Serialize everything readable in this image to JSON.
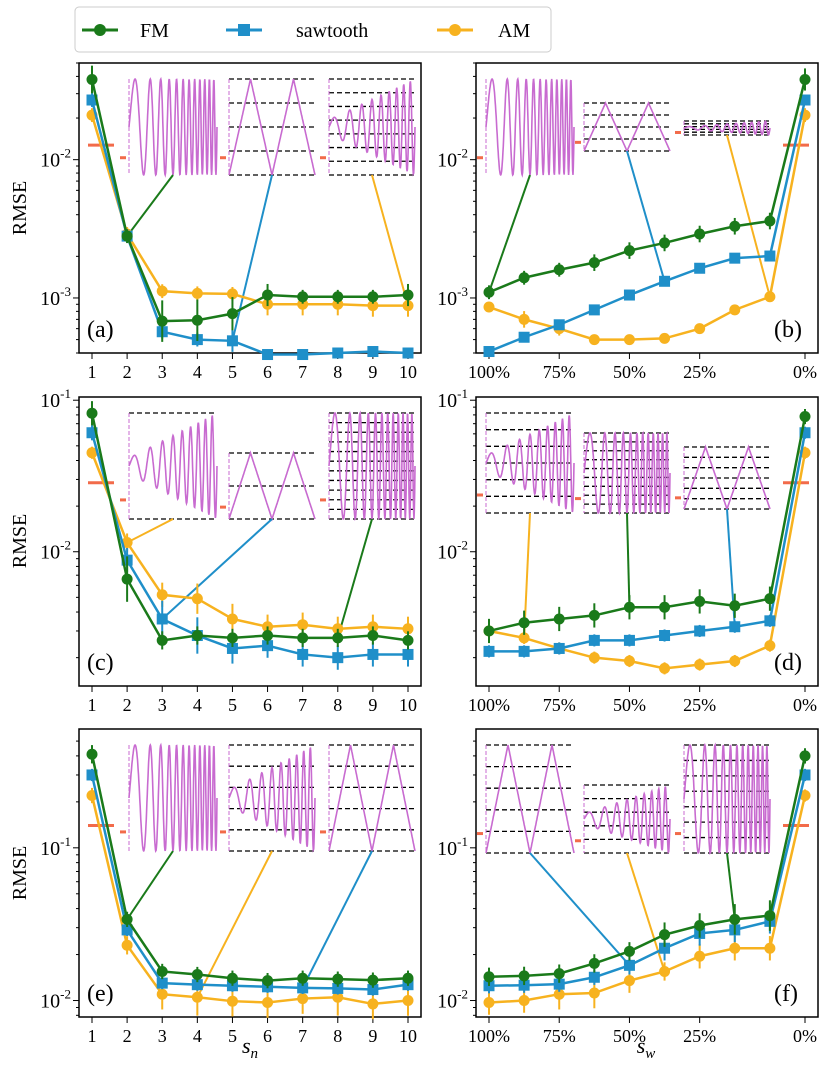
{
  "colors": {
    "FM": "#1a7a1a",
    "sawtooth": "#1f8fc9",
    "AM": "#f7b21f",
    "inset_signal": "#c86bd0",
    "inset_marker": "#f26b4a"
  },
  "legend": [
    {
      "label": "FM",
      "marker": "circle"
    },
    {
      "label": "sawtooth",
      "marker": "square"
    },
    {
      "label": "AM",
      "marker": "circle"
    }
  ],
  "shared": {
    "ylabel": "RMSE",
    "xlabel_left": "s_n",
    "xlabel_right": "s_w",
    "xlabel_left_base": "s",
    "xlabel_left_sub": "n",
    "xlabel_right_base": "s",
    "xlabel_right_sub": "w",
    "xticks_left": [
      "1",
      "2",
      "3",
      "4",
      "5",
      "6",
      "7",
      "8",
      "9",
      "10"
    ],
    "xticks_right": [
      "100%",
      "75%",
      "50%",
      "25%",
      "0%"
    ]
  },
  "chart_data": [
    {
      "panel": "(a)",
      "type": "line",
      "x_scale": "categorical",
      "y_scale": "log",
      "x": [
        "1",
        "2",
        "3",
        "4",
        "5",
        "6",
        "7",
        "8",
        "9",
        "10"
      ],
      "ylim": [
        0.0004,
        0.05
      ],
      "yticks": [
        {
          "value": 0.01,
          "label": "10",
          "exp": "-2"
        },
        {
          "value": 0.001,
          "label": "10",
          "exp": "-3"
        }
      ],
      "series": [
        {
          "name": "FM",
          "values": [
            0.038,
            0.0028,
            0.00068,
            0.00069,
            0.00077,
            0.00105,
            0.00102,
            0.00102,
            0.00102,
            0.00105
          ],
          "err": [
            0.1,
            0.05,
            0.15,
            0.15,
            0.12,
            0.08,
            0.05,
            0.05,
            0.05,
            0.08
          ]
        },
        {
          "name": "sawtooth",
          "values": [
            0.027,
            0.0028,
            0.00057,
            0.0005,
            0.00049,
            0.00039,
            0.00039,
            0.0004,
            0.00041,
            0.0004
          ],
          "err": [
            0.05,
            0.05,
            0.05,
            0.05,
            0.08,
            0.03,
            0.03,
            0.03,
            0.03,
            0.03
          ]
        },
        {
          "name": "AM",
          "values": [
            0.021,
            0.0029,
            0.00112,
            0.00108,
            0.00107,
            0.0009,
            0.0009,
            0.0009,
            0.00088,
            0.00088
          ],
          "err": [
            0.05,
            0.05,
            0.05,
            0.05,
            0.05,
            0.08,
            0.08,
            0.08,
            0.08,
            0.08
          ]
        }
      ]
    },
    {
      "panel": "(b)",
      "type": "line",
      "x_scale": "categorical",
      "y_scale": "log",
      "x": [
        "100%",
        "87.5%",
        "75%",
        "62.5%",
        "50%",
        "37.5%",
        "25%",
        "12.5%",
        "6.25%",
        "0%"
      ],
      "ylim": [
        0.0004,
        0.05
      ],
      "yticks": [
        {
          "value": 0.01,
          "label": "10",
          "exp": "-2"
        },
        {
          "value": 0.001,
          "label": "10",
          "exp": "-3"
        }
      ],
      "series": [
        {
          "name": "FM",
          "values": [
            0.0011,
            0.0014,
            0.0016,
            0.0018,
            0.0022,
            0.0025,
            0.0029,
            0.0033,
            0.0036,
            0.038
          ],
          "err": [
            0.05,
            0.05,
            0.05,
            0.06,
            0.06,
            0.06,
            0.06,
            0.06,
            0.06,
            0.08
          ]
        },
        {
          "name": "sawtooth",
          "values": [
            0.00041,
            0.00052,
            0.00064,
            0.00082,
            0.00105,
            0.00132,
            0.00164,
            0.00194,
            0.00201,
            0.027
          ],
          "err": [
            0.03,
            0.03,
            0.03,
            0.03,
            0.03,
            0.03,
            0.03,
            0.03,
            0.03,
            0.03
          ]
        },
        {
          "name": "AM",
          "values": [
            0.00086,
            0.0007,
            0.0006,
            0.0005,
            0.0005,
            0.00051,
            0.0006,
            0.00082,
            0.00102,
            0.021
          ],
          "err": [
            0.03,
            0.06,
            0.05,
            0.03,
            0.03,
            0.03,
            0.03,
            0.03,
            0.03,
            0.05
          ]
        }
      ]
    },
    {
      "panel": "(c)",
      "type": "line",
      "x_scale": "categorical",
      "y_scale": "log",
      "x": [
        "1",
        "2",
        "3",
        "4",
        "5",
        "6",
        "7",
        "8",
        "9",
        "10"
      ],
      "ylim": [
        0.0013,
        0.105
      ],
      "yticks": [
        {
          "value": 0.1,
          "label": "10",
          "exp": "-1"
        },
        {
          "value": 0.01,
          "label": "10",
          "exp": "-2"
        }
      ],
      "series": [
        {
          "name": "FM",
          "values": [
            0.082,
            0.0066,
            0.0026,
            0.0028,
            0.0027,
            0.0028,
            0.0027,
            0.0027,
            0.0028,
            0.0026
          ],
          "err": [
            0.08,
            0.15,
            0.06,
            0.06,
            0.06,
            0.06,
            0.06,
            0.06,
            0.06,
            0.06
          ]
        },
        {
          "name": "sawtooth",
          "values": [
            0.061,
            0.0088,
            0.0036,
            0.0028,
            0.0023,
            0.0024,
            0.0021,
            0.002,
            0.0021,
            0.0021
          ],
          "err": [
            0.05,
            0.08,
            0.12,
            0.12,
            0.1,
            0.08,
            0.08,
            0.08,
            0.08,
            0.08
          ]
        },
        {
          "name": "AM",
          "values": [
            0.045,
            0.0115,
            0.0052,
            0.0049,
            0.0036,
            0.0032,
            0.0033,
            0.0031,
            0.0032,
            0.0031
          ],
          "err": [
            0.04,
            0.06,
            0.08,
            0.1,
            0.1,
            0.08,
            0.08,
            0.08,
            0.08,
            0.08
          ]
        }
      ]
    },
    {
      "panel": "(d)",
      "type": "line",
      "x_scale": "categorical",
      "y_scale": "log",
      "x": [
        "100%",
        "87.5%",
        "75%",
        "62.5%",
        "50%",
        "37.5%",
        "25%",
        "12.5%",
        "6.25%",
        "0%"
      ],
      "ylim": [
        0.0013,
        0.105
      ],
      "yticks": [
        {
          "value": 0.1,
          "label": "10",
          "exp": "-1"
        },
        {
          "value": 0.01,
          "label": "10",
          "exp": "-2"
        }
      ],
      "series": [
        {
          "name": "FM",
          "values": [
            0.003,
            0.0034,
            0.0036,
            0.0038,
            0.0043,
            0.0043,
            0.0047,
            0.0044,
            0.0049,
            0.078
          ],
          "err": [
            0.08,
            0.08,
            0.08,
            0.08,
            0.08,
            0.08,
            0.08,
            0.08,
            0.08,
            0.05
          ]
        },
        {
          "name": "sawtooth",
          "values": [
            0.0022,
            0.0022,
            0.0023,
            0.0026,
            0.0026,
            0.0028,
            0.003,
            0.0032,
            0.0035,
            0.061
          ],
          "err": [
            0.04,
            0.04,
            0.04,
            0.04,
            0.04,
            0.04,
            0.04,
            0.04,
            0.04,
            0.04
          ]
        },
        {
          "name": "AM",
          "values": [
            0.003,
            0.0027,
            0.0023,
            0.002,
            0.0019,
            0.0017,
            0.0018,
            0.0019,
            0.0024,
            0.045
          ],
          "err": [
            0.04,
            0.04,
            0.04,
            0.04,
            0.04,
            0.04,
            0.04,
            0.04,
            0.04,
            0.04
          ]
        }
      ]
    },
    {
      "panel": "(e)",
      "type": "line",
      "x_scale": "categorical",
      "y_scale": "log",
      "x": [
        "1",
        "2",
        "3",
        "4",
        "5",
        "6",
        "7",
        "8",
        "9",
        "10"
      ],
      "ylim": [
        0.0078,
        0.6
      ],
      "yticks": [
        {
          "value": 0.1,
          "label": "10",
          "exp": "-1"
        },
        {
          "value": 0.01,
          "label": "10",
          "exp": "-2"
        }
      ],
      "series": [
        {
          "name": "FM",
          "values": [
            0.41,
            0.034,
            0.0155,
            0.0148,
            0.014,
            0.0135,
            0.014,
            0.0138,
            0.0136,
            0.014
          ],
          "err": [
            0.06,
            0.05,
            0.05,
            0.05,
            0.05,
            0.05,
            0.05,
            0.05,
            0.05,
            0.05
          ]
        },
        {
          "name": "sawtooth",
          "values": [
            0.3,
            0.029,
            0.013,
            0.0127,
            0.0125,
            0.0123,
            0.0121,
            0.012,
            0.0118,
            0.0127
          ],
          "err": [
            0.04,
            0.04,
            0.04,
            0.04,
            0.04,
            0.04,
            0.04,
            0.04,
            0.04,
            0.04
          ]
        },
        {
          "name": "AM",
          "values": [
            0.22,
            0.023,
            0.011,
            0.0105,
            0.0099,
            0.0097,
            0.0103,
            0.0105,
            0.0095,
            0.01
          ],
          "err": [
            0.05,
            0.06,
            0.1,
            0.12,
            0.1,
            0.1,
            0.1,
            0.12,
            0.1,
            0.1
          ]
        }
      ]
    },
    {
      "panel": "(f)",
      "type": "line",
      "x_scale": "categorical",
      "y_scale": "log",
      "x": [
        "100%",
        "87.5%",
        "75%",
        "62.5%",
        "50%",
        "37.5%",
        "25%",
        "12.5%",
        "6.25%",
        "0%"
      ],
      "ylim": [
        0.0078,
        0.6
      ],
      "yticks": [
        {
          "value": 0.1,
          "label": "10",
          "exp": "-1"
        },
        {
          "value": 0.01,
          "label": "10",
          "exp": "-2"
        }
      ],
      "series": [
        {
          "name": "FM",
          "values": [
            0.0143,
            0.0145,
            0.015,
            0.0175,
            0.021,
            0.027,
            0.031,
            0.034,
            0.036,
            0.4
          ],
          "err": [
            0.06,
            0.06,
            0.06,
            0.06,
            0.06,
            0.08,
            0.08,
            0.1,
            0.1,
            0.05
          ]
        },
        {
          "name": "sawtooth",
          "values": [
            0.0125,
            0.0126,
            0.0128,
            0.0142,
            0.017,
            0.022,
            0.0275,
            0.029,
            0.033,
            0.3
          ],
          "err": [
            0.05,
            0.05,
            0.05,
            0.05,
            0.06,
            0.08,
            0.08,
            0.08,
            0.08,
            0.04
          ]
        },
        {
          "name": "AM",
          "values": [
            0.0097,
            0.01,
            0.011,
            0.0112,
            0.0135,
            0.0155,
            0.0195,
            0.022,
            0.022,
            0.22
          ],
          "err": [
            0.08,
            0.08,
            0.1,
            0.1,
            0.08,
            0.06,
            0.08,
            0.08,
            0.08,
            0.04
          ]
        }
      ]
    }
  ]
}
